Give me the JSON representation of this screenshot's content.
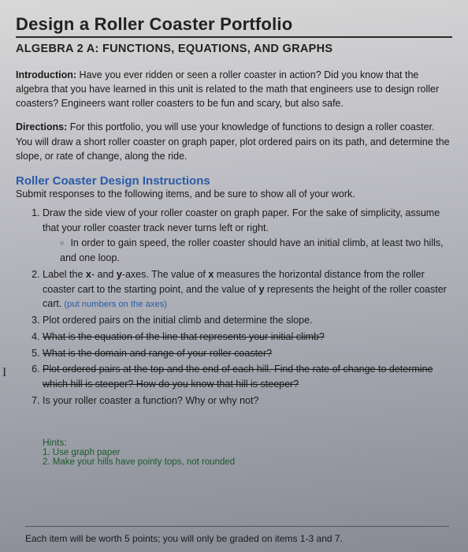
{
  "title": "Design a Roller Coaster Portfolio",
  "subtitle": "ALGEBRA 2 A: FUNCTIONS, EQUATIONS, AND GRAPHS",
  "intro_label": "Introduction:",
  "intro_text": " Have you ever ridden or seen a roller coaster in action? Did you know that the algebra that you have learned in this unit is related to the math that engineers use to design roller coasters? Engineers want roller coasters to be fun and scary, but also safe.",
  "directions_label": "Directions:",
  "directions_text": " For this portfolio, you will use your knowledge of functions to design a roller coaster. You will draw a short roller coaster on graph paper, plot ordered pairs on its path, and determine the slope, or rate of change, along the ride.",
  "section_head": "Roller Coaster Design Instructions",
  "section_sub": "Submit responses to the following items, and be sure to show all of your work.",
  "items": {
    "i1": "Draw the side view of your roller coaster on graph paper. For the sake of simplicity, assume that your roller coaster track never turns left or right.",
    "i1_sub": "In order to gain speed, the roller coaster should have an initial climb, at least two hills, and one loop.",
    "i2a": "Label the ",
    "i2_x": "x",
    "i2b": "- and ",
    "i2_y": "y",
    "i2c": "-axes. The value of ",
    "i2_x2": "x",
    "i2d": " measures the horizontal distance from the roller coaster cart to the starting point, and the value of ",
    "i2_y2": "y",
    "i2e": " represents the height of the roller coaster cart.",
    "i2_note": "  (put numbers on the axes)",
    "i3": "Plot ordered pairs on the initial climb and determine the slope.",
    "i4": "What is the equation of the line that represents your initial climb?",
    "i5": "What is the domain and range of your roller coaster?",
    "i6": "Plot ordered pairs at the top and the end of each hill. Find the rate of change to determine which hill is steeper? How do you know that hill is steeper?",
    "i7": "Is your roller coaster a function? Why or why not?"
  },
  "margin_mark": "I",
  "hints": {
    "title": "Hints:",
    "h1": "1. Use graph paper",
    "h2": "2. Make your hills have pointy tops, not rounded"
  },
  "footer": "Each item will be worth 5 points; you will only be graded on items 1-3 and 7."
}
